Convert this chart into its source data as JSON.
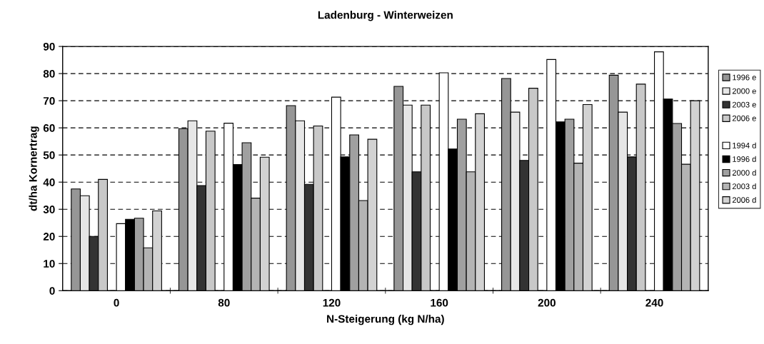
{
  "chart_data": {
    "type": "bar",
    "title": "Ladenburg - Winterweizen",
    "xlabel": "N-Steigerung (kg N/ha)",
    "ylabel": "dt/ha Kornertrag",
    "categories": [
      "0",
      "80",
      "120",
      "160",
      "200",
      "240"
    ],
    "ylim": [
      0,
      90
    ],
    "yticks": [
      0,
      10,
      20,
      30,
      40,
      50,
      60,
      70,
      80,
      90
    ],
    "grid": "y",
    "legend": "right",
    "series": [
      {
        "name": "1996 e",
        "color": "#969696",
        "values": [
          37.5,
          59.7,
          68.2,
          75.3,
          78.2,
          79.4
        ]
      },
      {
        "name": "2000 e",
        "color": "#e6e6e6",
        "values": [
          35,
          62.6,
          62.6,
          68.4,
          65.8,
          65.8
        ]
      },
      {
        "name": "2003 e",
        "color": "#333333",
        "values": [
          20,
          38.7,
          39.2,
          43.8,
          48,
          49.3
        ]
      },
      {
        "name": "2006 e",
        "color": "#c8c8c8",
        "values": [
          41,
          58.8,
          60.7,
          68.4,
          74.6,
          76.1
        ]
      },
      {
        "name": "1994 d",
        "color": "#ffffff",
        "values": [
          24.7,
          61.7,
          71.3,
          80.3,
          85.2,
          88
        ]
      },
      {
        "name": "1996 d",
        "color": "#000000",
        "values": [
          26.3,
          46.5,
          49.3,
          52.2,
          62.2,
          70.6
        ]
      },
      {
        "name": "2000 d",
        "color": "#a0a0a0",
        "values": [
          26.7,
          54.5,
          57.4,
          63.2,
          63.2,
          61.6
        ]
      },
      {
        "name": "2003 d",
        "color": "#b4b4b4",
        "values": [
          15.8,
          34.1,
          33.2,
          43.8,
          47,
          46.6
        ]
      },
      {
        "name": "2006 d",
        "color": "#d2d2d2",
        "values": [
          29.4,
          49.2,
          55.8,
          65.2,
          68.6,
          70
        ]
      }
    ]
  }
}
